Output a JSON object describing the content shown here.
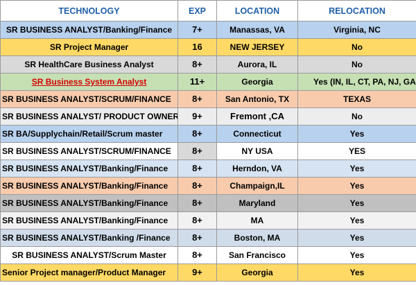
{
  "headers": {
    "technology": "TECHNOLOGY",
    "exp": "EXP",
    "location": "LOCATION",
    "relocation": "RELOCATION"
  },
  "rows": [
    {
      "tech": "SR BUSINESS ANALYST/Banking/Finance",
      "exp": "7+",
      "location": "Manassas, VA",
      "relocation": "Virginia, NC",
      "color": "#b7d1ee"
    },
    {
      "tech": "SR Project Manager",
      "exp": "16",
      "location": "NEW JERSEY",
      "relocation": "No",
      "color": "#ffd966"
    },
    {
      "tech": "SR HealthCare Business Analyst",
      "exp": "8+",
      "location": "Aurora, IL",
      "relocation": "No",
      "color": "#d9d9d9"
    },
    {
      "tech": "SR Business System Analyst",
      "exp": "11+",
      "location": "Georgia",
      "relocation": "Yes   (IN, IL, CT, PA, NJ, GA)",
      "color": "#c6e0b4"
    },
    {
      "tech": "SR BUSINESS ANALYST/SCRUM/FINANCE",
      "exp": "8+",
      "location": "San Antonio, TX",
      "relocation": "TEXAS",
      "color": "#f8cbad"
    },
    {
      "tech": "SR BUSINESS ANALYST/ PRODUCT OWNER",
      "exp": "9+",
      "location": "Fremont ,CA",
      "relocation": "No",
      "color": "#ededed"
    },
    {
      "tech": "SR BA/Supplychain/Retail/Scrum master",
      "exp": "8+",
      "location": "Connecticut",
      "relocation": "Yes",
      "color": "#b7d1ee"
    },
    {
      "tech": "SR BUSINESS ANALYST/SCRUM/FINANCE",
      "exp": "8+",
      "location": "NY USA",
      "relocation": "YES",
      "color": "#ffffff"
    },
    {
      "tech": "SR BUSINESS ANALYST/Banking/Finance",
      "exp": "8+",
      "location": "Herndon, VA",
      "relocation": "Yes",
      "color": "#d6e3f2"
    },
    {
      "tech": "SR BUSINESS ANALYST/Banking/Finance",
      "exp": "8+",
      "location": "Champaign,IL",
      "relocation": "Yes",
      "color": "#f8cbad"
    },
    {
      "tech": "SR BUSINESS ANALYST/Banking/Finance",
      "exp": "8+",
      "location": "Maryland",
      "relocation": "Yes",
      "color": "#c0c0c0"
    },
    {
      "tech": "SR BUSINESS ANALYST/Banking/Finance",
      "exp": "8+",
      "location": "MA",
      "relocation": "Yes",
      "color": "#f2f2f2"
    },
    {
      "tech": "SR BUSINESS ANALYST/Banking /Finance",
      "exp": "8+",
      "location": "Boston, MA",
      "relocation": "Yes",
      "color": "#d0dcea"
    },
    {
      "tech": "SR BUSINESS ANALYST/Scrum Master",
      "exp": "8+",
      "location": "San Francisco",
      "relocation": "Yes",
      "color": "#ffffff"
    },
    {
      "tech": "Senior Project manager/Product Manager",
      "exp": "9+",
      "location": "Georgia",
      "relocation": "Yes",
      "color": "#ffd966"
    }
  ]
}
